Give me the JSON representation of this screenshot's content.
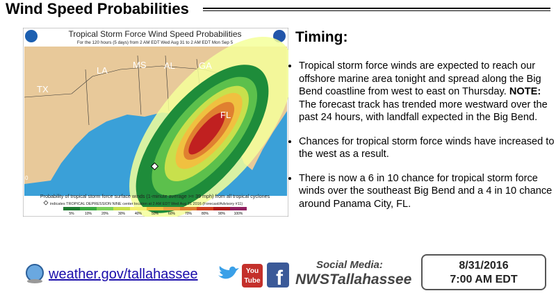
{
  "header": {
    "title": "Wind Speed Probabilities"
  },
  "map": {
    "title": "Tropical Storm Force Wind Speed Probabilities",
    "subtitle": "For the 120 hours (5 days) from 2 AM EDT Wed Aug 31 to 2 AM EDT Mon Sep 5",
    "state_labels": [
      "TX",
      "LA",
      "MS",
      "AL",
      "GA",
      "FL"
    ],
    "edge_label": "0",
    "caption": "Probability of tropical storm force surface winds (1-minute average >= 39 mph) from all tropical cyclones",
    "marker_note": "indicates TROPICAL DEPRESSION NINE center location at 2 AM EDT Wed Aug 31 2016 (Forecast/Advisory #11)",
    "legend_labels": [
      "5%",
      "10%",
      "20%",
      "30%",
      "40%",
      "50%",
      "60%",
      "70%",
      "80%",
      "90%",
      "100%"
    ]
  },
  "timing": {
    "heading": "Timing:",
    "bullets": [
      {
        "text": "Tropical storm force winds are expected to reach our offshore marine area tonight and spread along the Big Bend coastline from west to east on Thursday. ",
        "note_label": "NOTE:",
        "note_text": " The forecast track has trended more westward over the past 24 hours, with landfall expected in the Big Bend."
      },
      {
        "text": "Chances for tropical storm force winds have increased to the west as a result."
      },
      {
        "text": "There is now a 6 in 10 chance for tropical storm force winds over the southeast Big Bend and a 4 in 10 chance around Panama City, FL."
      }
    ]
  },
  "footer": {
    "link": "weather.gov/tallahassee",
    "youtube_icon": [
      "You",
      "Tube"
    ],
    "facebook_icon": "f",
    "social_label": "Social Media:",
    "social_handle": "NWSTallahassee",
    "date": "8/31/2016",
    "time": "7:00 AM EDT"
  }
}
